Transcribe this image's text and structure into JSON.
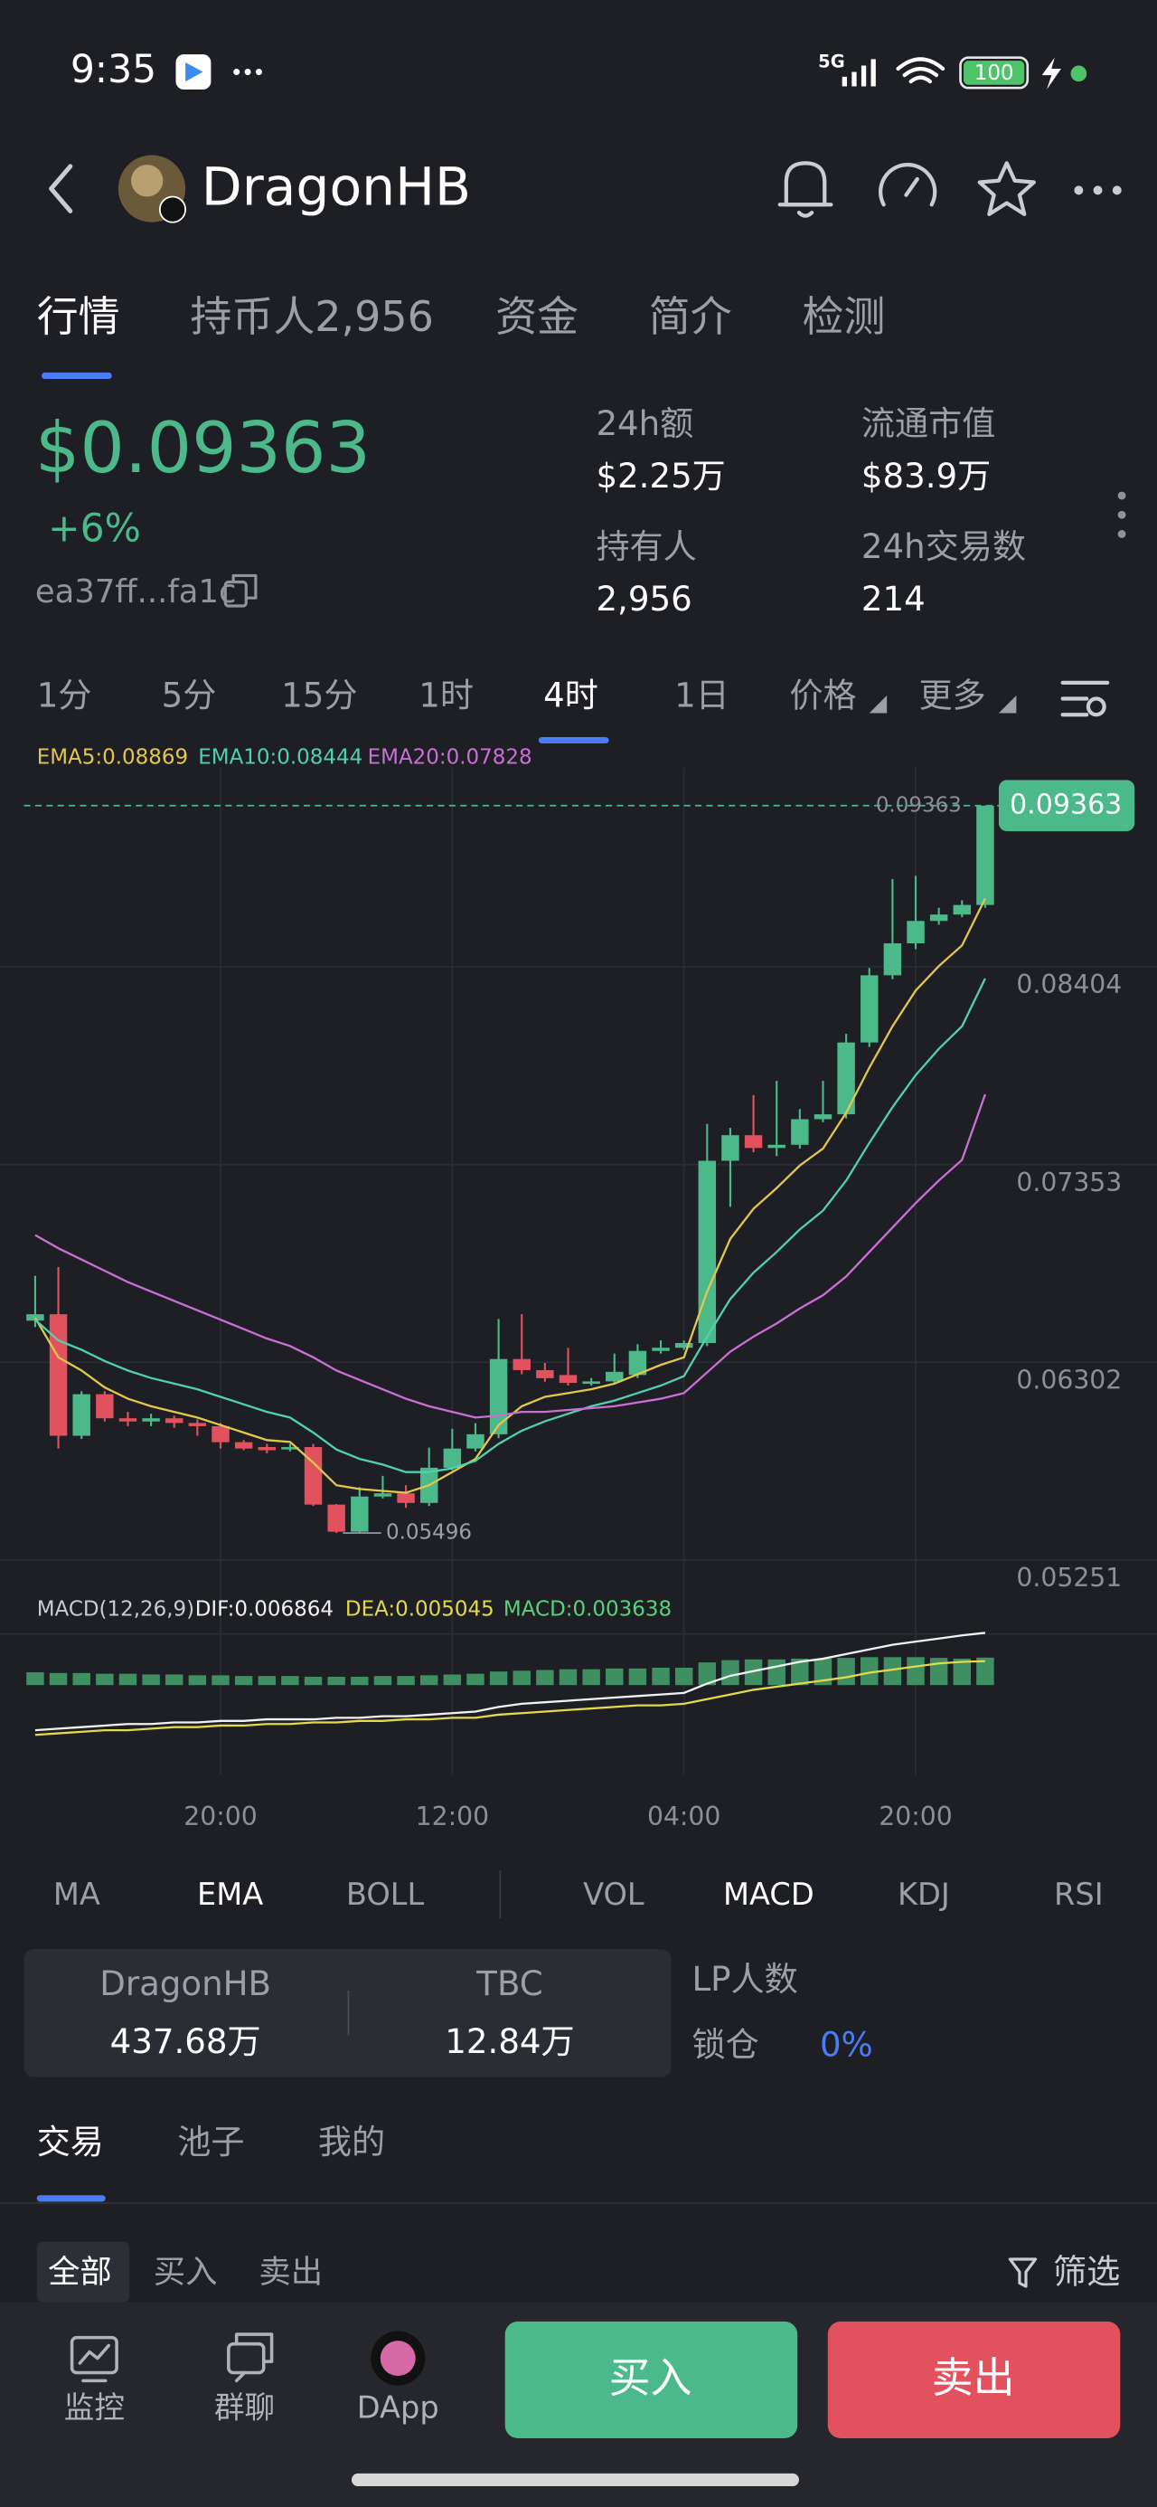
{
  "status_bar": {
    "time": "9:35",
    "network": "5G",
    "battery": "100"
  },
  "header": {
    "title": "DragonHB"
  },
  "tabs": [
    {
      "label": "行情",
      "active": true
    },
    {
      "label": "持币人2,956",
      "active": false
    },
    {
      "label": "资金",
      "active": false
    },
    {
      "label": "简介",
      "active": false
    },
    {
      "label": "检测",
      "active": false
    }
  ],
  "price": {
    "value": "$0.09363",
    "change": "+6%",
    "address": "ea37ff...fa1c"
  },
  "stats": [
    {
      "label": "24h额",
      "value": "$2.25万"
    },
    {
      "label": "流通市值",
      "value": "$83.9万"
    },
    {
      "label": "持有人",
      "value": "2,956"
    },
    {
      "label": "24h交易数",
      "value": "214"
    }
  ],
  "intervals": [
    {
      "label": "1分",
      "active": false
    },
    {
      "label": "5分",
      "active": false
    },
    {
      "label": "15分",
      "active": false
    },
    {
      "label": "1时",
      "active": false
    },
    {
      "label": "4时",
      "active": true
    },
    {
      "label": "1日",
      "active": false
    },
    {
      "label": "价格",
      "active": false,
      "dropdown": true
    },
    {
      "label": "更多",
      "active": false,
      "dropdown": true
    }
  ],
  "chart_data": {
    "type": "candlestick",
    "categories": [
      null,
      null,
      null,
      null,
      null,
      null,
      null,
      null,
      "20:00",
      null,
      null,
      null,
      null,
      null,
      null,
      null,
      null,
      null,
      "12:00",
      null,
      null,
      null,
      null,
      null,
      null,
      null,
      null,
      null,
      "04:00",
      null,
      null,
      null,
      null,
      null,
      null,
      null,
      null,
      null,
      "20:00",
      null,
      null,
      null
    ],
    "open": [
      0.06625,
      0.06659,
      0.06013,
      0.06234,
      0.06106,
      0.06089,
      0.06106,
      0.06081,
      0.06064,
      0.05979,
      0.05953,
      0.05945,
      0.05953,
      0.05647,
      0.05503,
      0.0569,
      0.05707,
      0.05656,
      0.05843,
      0.05945,
      0.06021,
      0.06421,
      0.06362,
      0.06336,
      0.06294,
      0.06302,
      0.06336,
      0.06464,
      0.06481,
      0.06506,
      0.07475,
      0.07611,
      0.07543,
      0.0756,
      0.07696,
      0.07722,
      0.08104,
      0.08461,
      0.08631,
      0.0875,
      0.08784,
      0.08835
    ],
    "high": [
      0.06863,
      0.0691,
      0.0625,
      0.0625,
      0.0614,
      0.0613,
      0.0612,
      0.061,
      0.06081,
      0.0599,
      0.0597,
      0.0597,
      0.0597,
      0.0565,
      0.0574,
      0.058,
      0.0575,
      0.0595,
      0.0605,
      0.0608,
      0.06634,
      0.0666,
      0.064,
      0.0648,
      0.0632,
      0.0645,
      0.065,
      0.0652,
      0.0652,
      0.07671,
      0.0765,
      0.07824,
      0.079,
      0.0775,
      0.079,
      0.0815,
      0.085,
      0.08973,
      0.0899,
      0.0882,
      0.0886,
      0.09363
    ],
    "low": [
      0.06591,
      0.05945,
      0.05996,
      0.06089,
      0.06064,
      0.06064,
      0.06055,
      0.06013,
      0.05945,
      0.05936,
      0.0592,
      0.0593,
      0.0564,
      0.05496,
      0.05496,
      0.0568,
      0.0563,
      0.0564,
      0.0583,
      0.0593,
      0.06,
      0.0634,
      0.063,
      0.0628,
      0.0628,
      0.0629,
      0.0632,
      0.0645,
      0.0647,
      0.0649,
      0.0723,
      0.0752,
      0.075,
      0.0754,
      0.0768,
      0.077,
      0.0808,
      0.0844,
      0.086,
      0.0873,
      0.0877,
      0.0882
    ],
    "close": [
      0.06659,
      0.06013,
      0.06234,
      0.06106,
      0.06089,
      0.06106,
      0.06081,
      0.06064,
      0.05979,
      0.05945,
      0.05936,
      0.05953,
      0.05647,
      0.05503,
      0.0569,
      0.05707,
      0.05656,
      0.05843,
      0.05945,
      0.06021,
      0.06421,
      0.06362,
      0.06319,
      0.06294,
      0.06302,
      0.06353,
      0.06464,
      0.06481,
      0.06506,
      0.07475,
      0.07611,
      0.07543,
      0.0756,
      0.07696,
      0.07722,
      0.08104,
      0.08461,
      0.08631,
      0.0875,
      0.08784,
      0.08835,
      0.09363
    ],
    "up_color": "#4cb98a",
    "down_color": "#e2515e",
    "ylim": [
      0.05146,
      0.09566
    ],
    "yticks": [
      0.08404,
      0.07353,
      0.06302,
      0.05251
    ],
    "grid": true,
    "last_price": 0.09363,
    "low_price": 0.05496,
    "series": [
      {
        "name": "EMA5:0.08869",
        "color": "#e3c74c",
        "values": [
          0.0664,
          0.0643,
          0.0636,
          0.0627,
          0.0621,
          0.0617,
          0.0614,
          0.0611,
          0.0607,
          0.0603,
          0.0599,
          0.0598,
          0.0587,
          0.0575,
          0.0573,
          0.0572,
          0.0571,
          0.0575,
          0.0582,
          0.0589,
          0.0607,
          0.0617,
          0.0622,
          0.0624,
          0.0626,
          0.0629,
          0.0634,
          0.0639,
          0.0643,
          0.0678,
          0.0706,
          0.0722,
          0.0733,
          0.0745,
          0.0754,
          0.0773,
          0.0797,
          0.0819,
          0.0838,
          0.0851,
          0.0862,
          0.08869
        ]
      },
      {
        "name": "EMA10:0.08444",
        "color": "#4fd1b0",
        "values": [
          0.0663,
          0.0652,
          0.0647,
          0.0641,
          0.0636,
          0.0632,
          0.0629,
          0.0626,
          0.0622,
          0.0618,
          0.0614,
          0.0611,
          0.0603,
          0.0594,
          0.0589,
          0.0586,
          0.0582,
          0.0582,
          0.0584,
          0.0588,
          0.0597,
          0.0604,
          0.0609,
          0.0613,
          0.0617,
          0.062,
          0.0624,
          0.0628,
          0.0633,
          0.0654,
          0.0674,
          0.0688,
          0.0699,
          0.0711,
          0.0721,
          0.0737,
          0.0757,
          0.0776,
          0.0793,
          0.0807,
          0.0819,
          0.08444
        ]
      },
      {
        "name": "EMA20:0.07828",
        "color": "#c96fd6",
        "values": [
          0.0708,
          0.0701,
          0.0695,
          0.0689,
          0.0683,
          0.0678,
          0.0673,
          0.0668,
          0.0663,
          0.0658,
          0.0653,
          0.0649,
          0.0643,
          0.0636,
          0.0631,
          0.0626,
          0.0621,
          0.0617,
          0.0614,
          0.0611,
          0.0612,
          0.0614,
          0.0614,
          0.0615,
          0.0616,
          0.0617,
          0.0619,
          0.0621,
          0.0624,
          0.0635,
          0.0646,
          0.0654,
          0.0661,
          0.0669,
          0.0676,
          0.0686,
          0.0699,
          0.0712,
          0.0725,
          0.0737,
          0.0748,
          0.07828
        ]
      }
    ],
    "macd": {
      "title": "MACD(12,26,9)",
      "ylim": [
        0,
        0.0072
      ],
      "y2lim": [
        -0.0072,
        0.0076
      ],
      "series": [
        {
          "name": "DIF:0.006864",
          "color": "#f2f2f2",
          "type": "line",
          "values": [
            0.0006,
            0.0007,
            0.0008,
            0.0009,
            0.001,
            0.001,
            0.0011,
            0.0011,
            0.0012,
            0.0012,
            0.0013,
            0.0013,
            0.0013,
            0.0014,
            0.0014,
            0.0015,
            0.0015,
            0.0016,
            0.0017,
            0.0018,
            0.0021,
            0.0023,
            0.0024,
            0.0025,
            0.0026,
            0.0027,
            0.0028,
            0.0029,
            0.003,
            0.0036,
            0.0041,
            0.0044,
            0.0047,
            0.005,
            0.0052,
            0.0055,
            0.0058,
            0.0061,
            0.0063,
            0.0065,
            0.0067,
            0.006864
          ]
        },
        {
          "name": "DEA:0.005045",
          "color": "#e3d94c",
          "type": "line",
          "values": [
            0.0003,
            0.0004,
            0.0005,
            0.0006,
            0.0006,
            0.0007,
            0.0008,
            0.0008,
            0.0009,
            0.0009,
            0.001,
            0.001,
            0.0011,
            0.0011,
            0.0012,
            0.0012,
            0.0013,
            0.0013,
            0.0014,
            0.0014,
            0.0016,
            0.0017,
            0.0018,
            0.0019,
            0.002,
            0.0021,
            0.0022,
            0.0022,
            0.0023,
            0.0026,
            0.0029,
            0.0032,
            0.0034,
            0.0036,
            0.0038,
            0.004,
            0.0043,
            0.0045,
            0.0047,
            0.0049,
            0.005,
            0.005045
          ]
        },
        {
          "name": "MACD:0.003638",
          "color": "#3f8f62",
          "legend_color": "#5ad17a",
          "type": "bar",
          "axis": "y2",
          "values": [
            0.0017,
            0.0016,
            0.0016,
            0.0015,
            0.0015,
            0.0014,
            0.0014,
            0.0013,
            0.0013,
            0.0012,
            0.0012,
            0.0012,
            0.0011,
            0.0011,
            0.0011,
            0.0012,
            0.0012,
            0.0013,
            0.0014,
            0.0015,
            0.0018,
            0.0019,
            0.002,
            0.0021,
            0.0021,
            0.0022,
            0.0022,
            0.0023,
            0.0023,
            0.003,
            0.0033,
            0.0034,
            0.0034,
            0.0035,
            0.0035,
            0.0036,
            0.0037,
            0.0037,
            0.0037,
            0.0036,
            0.0035,
            0.003638
          ]
        }
      ]
    }
  },
  "indicators": [
    {
      "label": "MA",
      "active": false
    },
    {
      "label": "EMA",
      "active": true
    },
    {
      "label": "BOLL",
      "active": false
    },
    {
      "label": "VOL",
      "active": false
    },
    {
      "label": "MACD",
      "active": true
    },
    {
      "label": "KDJ",
      "active": false
    },
    {
      "label": "RSI",
      "active": false
    }
  ],
  "pool": {
    "token1": "DragonHB",
    "amount1": "437.68万",
    "token2": "TBC",
    "amount2": "12.84万",
    "lp_label": "LP人数",
    "lock_label": "锁仓",
    "lock_value": "0%"
  },
  "trade_tabs": [
    {
      "label": "交易",
      "active": true
    },
    {
      "label": "池子",
      "active": false
    },
    {
      "label": "我的",
      "active": false
    }
  ],
  "filter_tabs": [
    {
      "label": "全部",
      "active": true
    },
    {
      "label": "买入",
      "active": false
    },
    {
      "label": "卖出",
      "active": false
    }
  ],
  "filter": "筛选",
  "bottom_nav": [
    {
      "label": "监控"
    },
    {
      "label": "群聊"
    },
    {
      "label": "DApp"
    }
  ],
  "buy": "买入",
  "sell": "卖出"
}
